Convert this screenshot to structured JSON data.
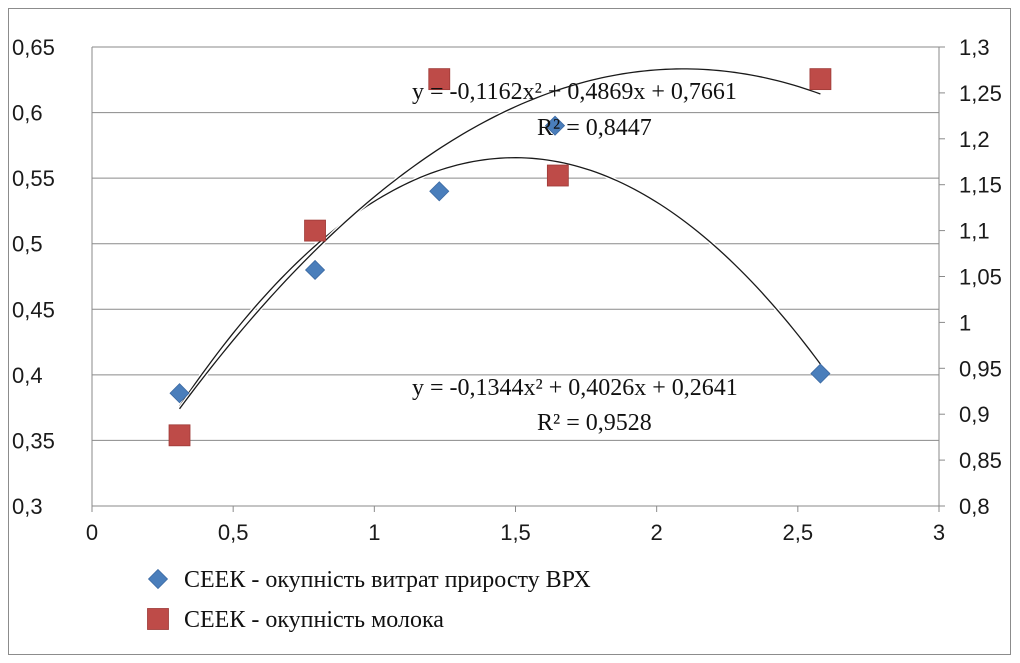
{
  "chart_data": {
    "type": "scatter",
    "x_axis": {
      "min": 0,
      "max": 3,
      "step": 0.5,
      "tick_labels": [
        "0",
        "0,5",
        "1",
        "1,5",
        "2",
        "2,5",
        "3"
      ]
    },
    "y_left": {
      "min": 0.3,
      "max": 0.65,
      "step": 0.05,
      "tick_labels": [
        "0,3",
        "0,35",
        "0,4",
        "0,45",
        "0,5",
        "0,55",
        "0,6",
        "0,65"
      ]
    },
    "y_right": {
      "min": 0.8,
      "max": 1.3,
      "step": 0.05,
      "tick_labels": [
        "0,8",
        "0,85",
        "0,9",
        "0,95",
        "1",
        "1,05",
        "1,1",
        "1,15",
        "1,2",
        "1,25",
        "1,3"
      ]
    },
    "grid": "horizontal",
    "legend_position": "bottom-left",
    "series": [
      {
        "name": "СЕЕК - окупність витрат приросту ВРХ",
        "axis": "left",
        "marker": "diamond",
        "color": "#4a7ebb",
        "points": [
          [
            0.31,
            0.386
          ],
          [
            0.79,
            0.48
          ],
          [
            1.23,
            0.54
          ],
          [
            1.64,
            0.59
          ],
          [
            2.58,
            0.401
          ]
        ],
        "trendline": {
          "a": -0.1344,
          "b": 0.4026,
          "c": 0.2641,
          "x_from": 0.31,
          "x_to": 2.58
        }
      },
      {
        "name": "СЕЕК - окупність молока",
        "axis": "right",
        "marker": "square",
        "color": "#be4b48",
        "points": [
          [
            0.31,
            0.877
          ],
          [
            0.79,
            1.1
          ],
          [
            1.23,
            1.265
          ],
          [
            1.65,
            1.16
          ],
          [
            2.58,
            1.265
          ]
        ],
        "trendline": {
          "a": -0.1162,
          "b": 0.4869,
          "c": 0.7661,
          "x_from": 0.31,
          "x_to": 2.58
        }
      }
    ],
    "annotations": {
      "eq_top": "y = -0,1162x² + 0,4869x + 0,7661",
      "r2_top": "R² = 0,8447",
      "eq_bottom": "y = -0,1344x² + 0,4026x + 0,2641",
      "r2_bottom": "R² = 0,9528"
    }
  }
}
